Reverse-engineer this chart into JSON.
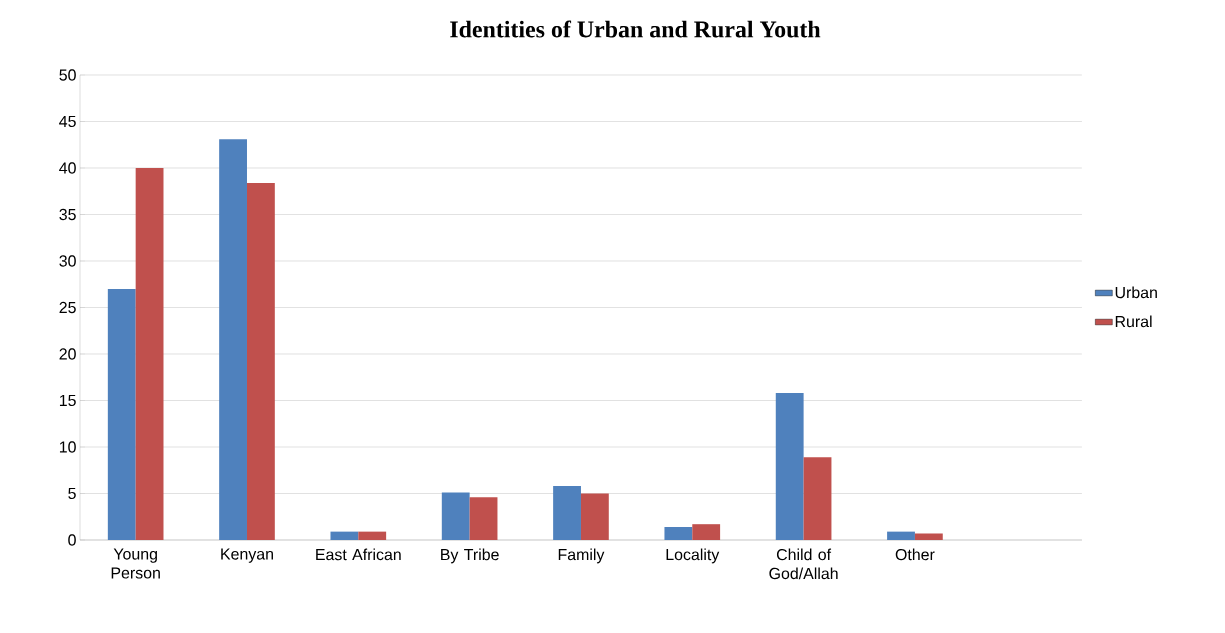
{
  "chart_data": {
    "type": "bar",
    "title": "Identities of Urban and Rural Youth",
    "categories": [
      "Young Person",
      "Kenyan",
      "East African",
      "By Tribe",
      "Family",
      "Locality",
      "Child of God/Allah",
      "Other",
      null
    ],
    "series": [
      {
        "name": "Urban",
        "color": "#4f81bd",
        "values": [
          27.0,
          43.1,
          0.9,
          5.1,
          5.8,
          1.4,
          15.8,
          0.9,
          null
        ]
      },
      {
        "name": "Rural",
        "color": "#c0504d",
        "values": [
          40.0,
          38.4,
          0.9,
          4.6,
          5.0,
          1.7,
          8.9,
          0.7,
          null
        ]
      }
    ],
    "ylim": [
      0,
      50
    ],
    "yticks": [
      0,
      5,
      10,
      15,
      20,
      25,
      30,
      35,
      40,
      45,
      50
    ],
    "grid": "y",
    "legend": "right"
  }
}
